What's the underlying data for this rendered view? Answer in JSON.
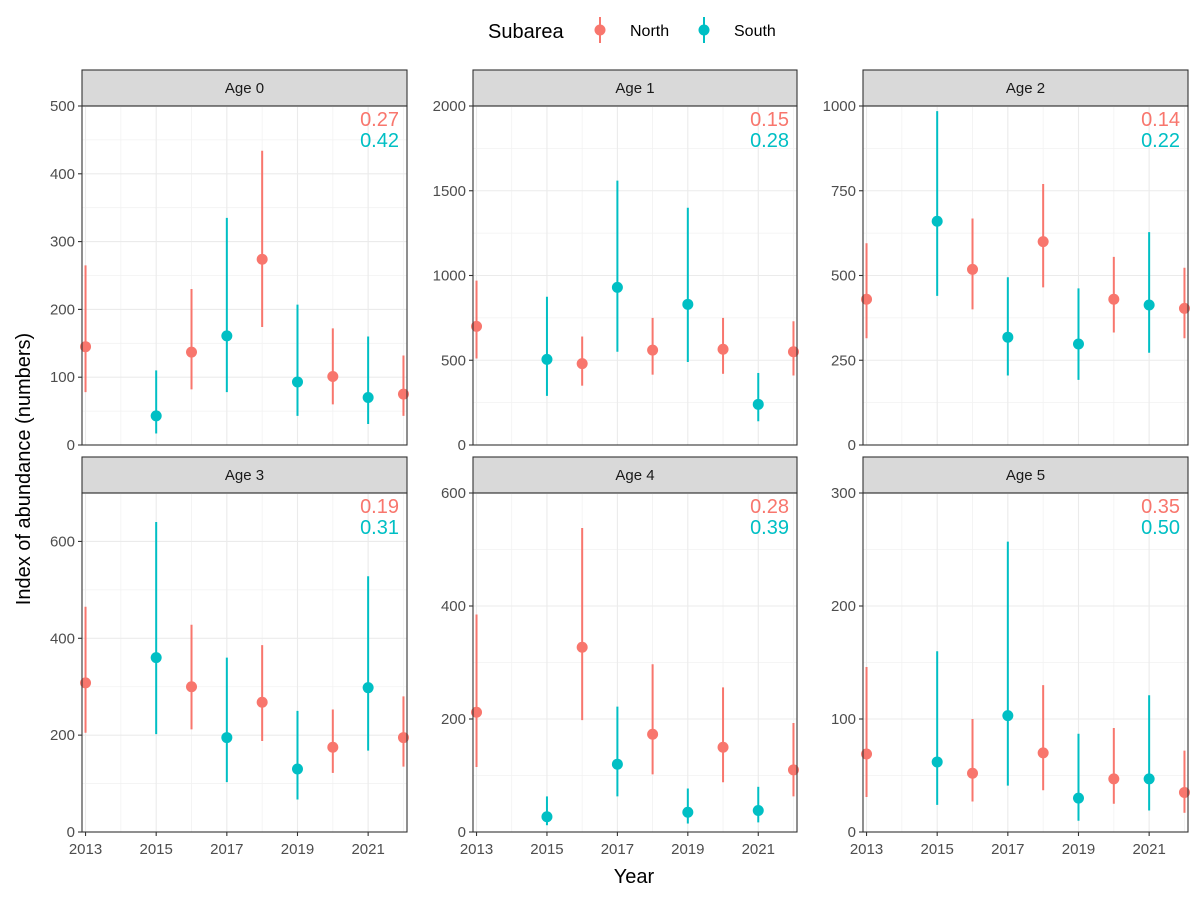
{
  "legend": {
    "title": "Subarea",
    "items": [
      {
        "name": "North",
        "color": "#F8766D"
      },
      {
        "name": "South",
        "color": "#00BFC4"
      }
    ]
  },
  "chart_data": {
    "type": "scatter",
    "subtype": "point-with-errorbars, faceted",
    "xlabel": "Year",
    "ylabel": "Index of abundance (numbers)",
    "x_ticks": [
      "2013",
      "2015",
      "2017",
      "2019",
      "2021"
    ],
    "xlim": [
      2012.9,
      2022.1
    ],
    "grid": true,
    "legend_position": "top",
    "colors": {
      "North": "#F8766D",
      "South": "#00BFC4"
    },
    "panels": [
      {
        "title": "Age 0",
        "ylim": [
          0,
          500
        ],
        "y_ticks": [
          0,
          100,
          200,
          300,
          400,
          500
        ],
        "cv": {
          "North": "0.27",
          "South": "0.42"
        },
        "points": [
          {
            "year": 2013,
            "subarea": "North",
            "value": 145,
            "lower": 78,
            "upper": 265
          },
          {
            "year": 2015,
            "subarea": "South",
            "value": 43,
            "lower": 17,
            "upper": 110
          },
          {
            "year": 2016,
            "subarea": "North",
            "value": 137,
            "lower": 82,
            "upper": 230
          },
          {
            "year": 2017,
            "subarea": "South",
            "value": 161,
            "lower": 78,
            "upper": 335
          },
          {
            "year": 2018,
            "subarea": "North",
            "value": 274,
            "lower": 174,
            "upper": 434
          },
          {
            "year": 2019,
            "subarea": "South",
            "value": 93,
            "lower": 43,
            "upper": 207
          },
          {
            "year": 2020,
            "subarea": "North",
            "value": 101,
            "lower": 60,
            "upper": 172
          },
          {
            "year": 2021,
            "subarea": "South",
            "value": 70,
            "lower": 31,
            "upper": 160
          },
          {
            "year": 2022,
            "subarea": "North",
            "value": 75,
            "lower": 43,
            "upper": 132
          }
        ]
      },
      {
        "title": "Age 1",
        "ylim": [
          0,
          2000
        ],
        "y_ticks": [
          0,
          500,
          1000,
          1500,
          2000
        ],
        "cv": {
          "North": "0.15",
          "South": "0.28"
        },
        "points": [
          {
            "year": 2013,
            "subarea": "North",
            "value": 700,
            "lower": 510,
            "upper": 970
          },
          {
            "year": 2015,
            "subarea": "South",
            "value": 505,
            "lower": 290,
            "upper": 875
          },
          {
            "year": 2016,
            "subarea": "North",
            "value": 480,
            "lower": 350,
            "upper": 640
          },
          {
            "year": 2017,
            "subarea": "South",
            "value": 930,
            "lower": 550,
            "upper": 1560
          },
          {
            "year": 2018,
            "subarea": "North",
            "value": 560,
            "lower": 415,
            "upper": 750
          },
          {
            "year": 2019,
            "subarea": "South",
            "value": 830,
            "lower": 490,
            "upper": 1400
          },
          {
            "year": 2020,
            "subarea": "North",
            "value": 565,
            "lower": 420,
            "upper": 750
          },
          {
            "year": 2021,
            "subarea": "South",
            "value": 240,
            "lower": 140,
            "upper": 425
          },
          {
            "year": 2022,
            "subarea": "North",
            "value": 550,
            "lower": 410,
            "upper": 730
          }
        ]
      },
      {
        "title": "Age 2",
        "ylim": [
          0,
          1000
        ],
        "y_ticks": [
          0,
          250,
          500,
          750,
          1000
        ],
        "cv": {
          "North": "0.14",
          "South": "0.22"
        },
        "points": [
          {
            "year": 2013,
            "subarea": "North",
            "value": 430,
            "lower": 315,
            "upper": 595
          },
          {
            "year": 2015,
            "subarea": "South",
            "value": 660,
            "lower": 440,
            "upper": 985
          },
          {
            "year": 2016,
            "subarea": "North",
            "value": 518,
            "lower": 400,
            "upper": 668
          },
          {
            "year": 2017,
            "subarea": "South",
            "value": 318,
            "lower": 205,
            "upper": 495
          },
          {
            "year": 2018,
            "subarea": "North",
            "value": 600,
            "lower": 465,
            "upper": 770
          },
          {
            "year": 2019,
            "subarea": "South",
            "value": 298,
            "lower": 192,
            "upper": 462
          },
          {
            "year": 2020,
            "subarea": "North",
            "value": 430,
            "lower": 332,
            "upper": 555
          },
          {
            "year": 2021,
            "subarea": "South",
            "value": 413,
            "lower": 272,
            "upper": 628
          },
          {
            "year": 2022,
            "subarea": "North",
            "value": 403,
            "lower": 315,
            "upper": 523
          }
        ]
      },
      {
        "title": "Age 3",
        "ylim": [
          0,
          700
        ],
        "y_ticks": [
          0,
          200,
          400,
          600
        ],
        "cv": {
          "North": "0.19",
          "South": "0.31"
        },
        "points": [
          {
            "year": 2013,
            "subarea": "North",
            "value": 308,
            "lower": 205,
            "upper": 465
          },
          {
            "year": 2015,
            "subarea": "South",
            "value": 360,
            "lower": 202,
            "upper": 640
          },
          {
            "year": 2016,
            "subarea": "North",
            "value": 300,
            "lower": 212,
            "upper": 428
          },
          {
            "year": 2017,
            "subarea": "South",
            "value": 195,
            "lower": 103,
            "upper": 360
          },
          {
            "year": 2018,
            "subarea": "North",
            "value": 268,
            "lower": 188,
            "upper": 386
          },
          {
            "year": 2019,
            "subarea": "South",
            "value": 130,
            "lower": 67,
            "upper": 250
          },
          {
            "year": 2020,
            "subarea": "North",
            "value": 175,
            "lower": 122,
            "upper": 253
          },
          {
            "year": 2021,
            "subarea": "South",
            "value": 298,
            "lower": 168,
            "upper": 528
          },
          {
            "year": 2022,
            "subarea": "North",
            "value": 195,
            "lower": 135,
            "upper": 280
          }
        ]
      },
      {
        "title": "Age 4",
        "ylim": [
          0,
          600
        ],
        "y_ticks": [
          0,
          200,
          400,
          600
        ],
        "cv": {
          "North": "0.28",
          "South": "0.39"
        },
        "points": [
          {
            "year": 2013,
            "subarea": "North",
            "value": 212,
            "lower": 115,
            "upper": 385
          },
          {
            "year": 2015,
            "subarea": "South",
            "value": 27,
            "lower": 12,
            "upper": 63
          },
          {
            "year": 2016,
            "subarea": "North",
            "value": 327,
            "lower": 198,
            "upper": 538
          },
          {
            "year": 2017,
            "subarea": "South",
            "value": 120,
            "lower": 63,
            "upper": 222
          },
          {
            "year": 2018,
            "subarea": "North",
            "value": 173,
            "lower": 102,
            "upper": 297
          },
          {
            "year": 2019,
            "subarea": "South",
            "value": 35,
            "lower": 15,
            "upper": 77
          },
          {
            "year": 2020,
            "subarea": "North",
            "value": 150,
            "lower": 88,
            "upper": 256
          },
          {
            "year": 2021,
            "subarea": "South",
            "value": 38,
            "lower": 17,
            "upper": 80
          },
          {
            "year": 2022,
            "subarea": "North",
            "value": 110,
            "lower": 63,
            "upper": 193
          }
        ]
      },
      {
        "title": "Age 5",
        "ylim": [
          0,
          300
        ],
        "y_ticks": [
          0,
          100,
          200,
          300
        ],
        "cv": {
          "North": "0.35",
          "South": "0.50"
        },
        "points": [
          {
            "year": 2013,
            "subarea": "North",
            "value": 69,
            "lower": 31,
            "upper": 146
          },
          {
            "year": 2015,
            "subarea": "South",
            "value": 62,
            "lower": 24,
            "upper": 160
          },
          {
            "year": 2016,
            "subarea": "North",
            "value": 52,
            "lower": 27,
            "upper": 100
          },
          {
            "year": 2017,
            "subarea": "South",
            "value": 103,
            "lower": 41,
            "upper": 257
          },
          {
            "year": 2018,
            "subarea": "North",
            "value": 70,
            "lower": 37,
            "upper": 130
          },
          {
            "year": 2019,
            "subarea": "South",
            "value": 30,
            "lower": 10,
            "upper": 87
          },
          {
            "year": 2020,
            "subarea": "North",
            "value": 47,
            "lower": 25,
            "upper": 92
          },
          {
            "year": 2021,
            "subarea": "South",
            "value": 47,
            "lower": 19,
            "upper": 121
          },
          {
            "year": 2022,
            "subarea": "North",
            "value": 35,
            "lower": 17,
            "upper": 72
          }
        ]
      }
    ]
  }
}
